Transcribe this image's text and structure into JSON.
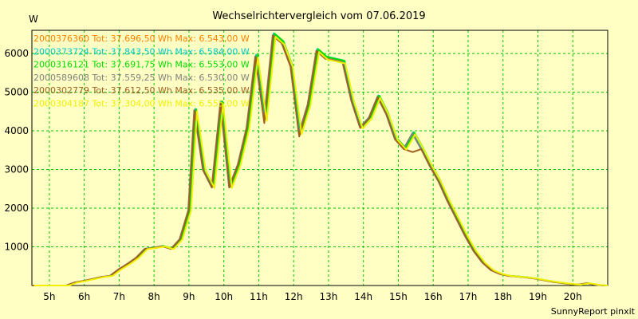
{
  "chart_data": {
    "type": "line",
    "title": "Wechselrichtervergleich vom 07.06.2019",
    "ylabel": "W",
    "xlabel": "",
    "footer": "SunnyReport pinxit",
    "grid": true,
    "ylim": [
      0,
      6600
    ],
    "xlim": [
      4.5,
      21
    ],
    "x_tick_labels": [
      "5h",
      "6h",
      "7h",
      "8h",
      "9h",
      "10h",
      "11h",
      "12h",
      "13h",
      "14h",
      "15h",
      "16h",
      "17h",
      "18h",
      "19h",
      "20h"
    ],
    "x_tick_values": [
      5,
      6,
      7,
      8,
      9,
      10,
      11,
      12,
      13,
      14,
      15,
      16,
      17,
      18,
      19,
      20
    ],
    "y_ticks": [
      1000,
      2000,
      3000,
      4000,
      5000,
      6000
    ],
    "legend_placement": "top-left",
    "series": [
      {
        "name": "2000376360 Tot: 37.696,50 Wh Max: 6.543,00 W",
        "color": "#ff8000"
      },
      {
        "name": "2000373724 Tot: 37.843,50 Wh Max: 6.584,00 W",
        "color": "#00c8c8"
      },
      {
        "name": "2000316121 Tot: 37.691,75 Wh Max: 6.553,00 W",
        "color": "#00dd00"
      },
      {
        "name": "2000589608 Tot: 37.559,25 Wh Max: 6.530,00 W",
        "color": "#808080"
      },
      {
        "name": "2000302779 Tot: 37.612,50 Wh Max: 6.535,00 W",
        "color": "#a06020"
      },
      {
        "name": "2000304187 Tot: 37.304,00 Wh Max: 6.555,00 W",
        "color": "#f0f000"
      }
    ],
    "x": [
      4.5,
      5.0,
      5.5,
      5.75,
      6.0,
      6.25,
      6.5,
      6.75,
      7.0,
      7.25,
      7.5,
      7.75,
      8.0,
      8.25,
      8.5,
      8.75,
      9.0,
      9.17,
      9.42,
      9.67,
      9.92,
      10.17,
      10.42,
      10.67,
      10.92,
      11.17,
      11.42,
      11.67,
      11.92,
      12.17,
      12.42,
      12.67,
      12.92,
      13.17,
      13.42,
      13.67,
      13.92,
      14.17,
      14.42,
      14.67,
      14.92,
      15.17,
      15.42,
      15.67,
      15.92,
      16.17,
      16.42,
      16.67,
      16.92,
      17.17,
      17.42,
      17.67,
      17.92,
      18.17,
      18.42,
      18.67,
      18.92,
      19.17,
      19.42,
      19.67,
      19.92,
      20.17,
      20.42,
      20.67,
      20.92,
      21.0
    ],
    "base_values": [
      0,
      0,
      0,
      80,
      120,
      170,
      220,
      250,
      420,
      560,
      720,
      950,
      980,
      1020,
      950,
      1200,
      1950,
      4550,
      3000,
      2550,
      4750,
      2550,
      3150,
      4100,
      5950,
      4300,
      6500,
      6300,
      5700,
      3950,
      4700,
      6100,
      5900,
      5850,
      5800,
      4800,
      4100,
      4350,
      4900,
      4450,
      3800,
      3550,
      3950,
      3550,
      3100,
      2700,
      2200,
      1750,
      1300,
      900,
      600,
      400,
      300,
      250,
      230,
      210,
      180,
      140,
      100,
      70,
      40,
      20,
      60,
      20,
      0,
      0
    ]
  }
}
